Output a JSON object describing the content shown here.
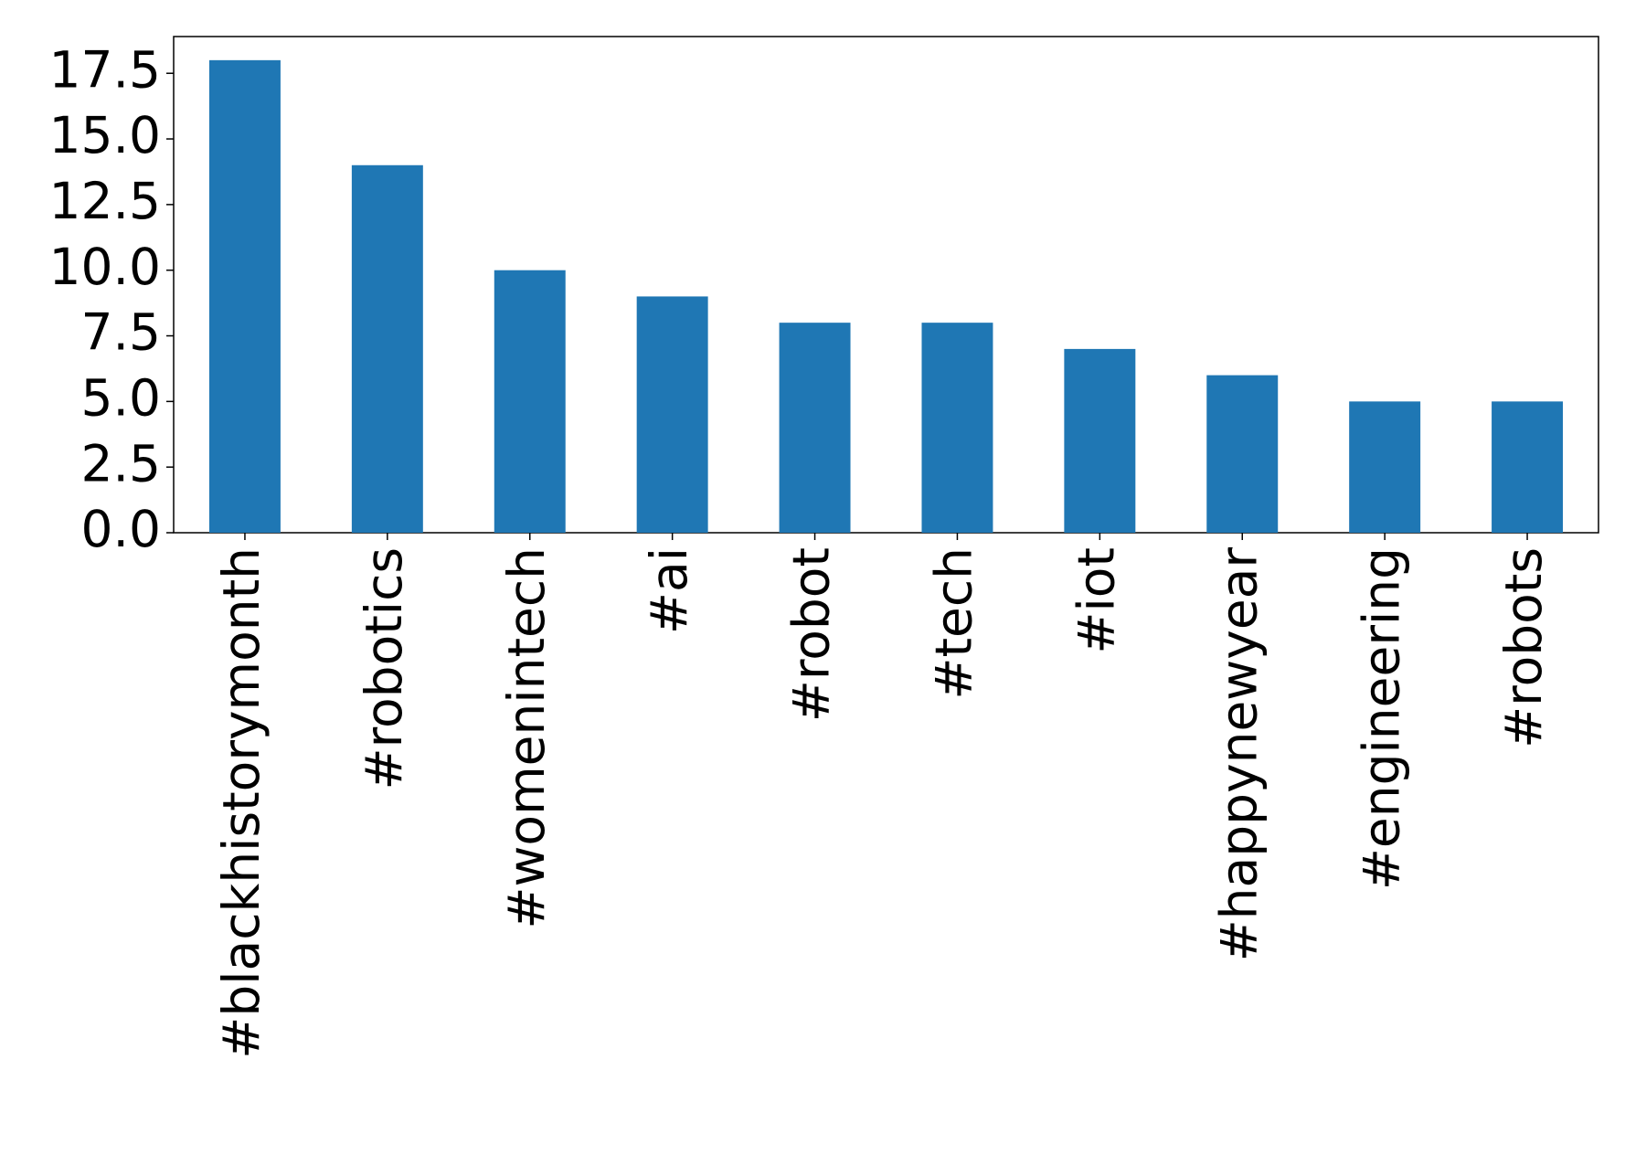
{
  "chart_data": {
    "type": "bar",
    "categories": [
      "#blackhistorymonth",
      "#robotics",
      "#womenintech",
      "#ai",
      "#robot",
      "#tech",
      "#iot",
      "#happynewyear",
      "#engineering",
      "#robots"
    ],
    "values": [
      18,
      14,
      10,
      9,
      8,
      8,
      7,
      6,
      5,
      5
    ],
    "color": "#1f77b4",
    "ylim": [
      0,
      18.9
    ],
    "yticks": [
      {
        "value": 0,
        "label": "0.0"
      },
      2.5,
      {
        "value": 5,
        "label": "5.0"
      },
      7.5,
      {
        "value": 10,
        "label": "10.0"
      },
      12.5,
      {
        "value": 15,
        "label": "15.0"
      },
      17.5
    ],
    "grid": false
  }
}
